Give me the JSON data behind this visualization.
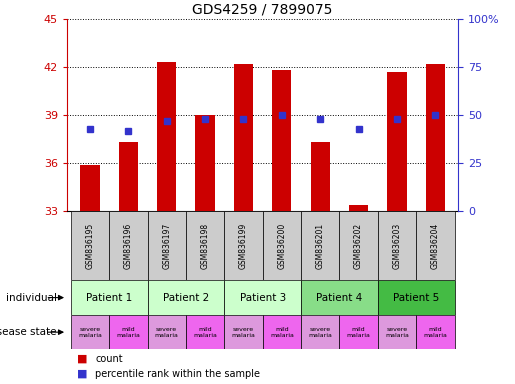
{
  "title": "GDS4259 / 7899075",
  "samples": [
    "GSM836195",
    "GSM836196",
    "GSM836197",
    "GSM836198",
    "GSM836199",
    "GSM836200",
    "GSM836201",
    "GSM836202",
    "GSM836203",
    "GSM836204"
  ],
  "bar_values": [
    35.9,
    37.3,
    42.3,
    39.0,
    42.2,
    41.8,
    37.3,
    33.4,
    41.7,
    42.2
  ],
  "percentile_ranks": [
    43,
    42,
    47,
    48,
    48,
    50,
    48,
    43,
    48,
    50
  ],
  "ylim_left": [
    33,
    45
  ],
  "ylim_right": [
    0,
    100
  ],
  "yticks_left": [
    33,
    36,
    39,
    42,
    45
  ],
  "yticks_right": [
    0,
    25,
    50,
    75,
    100
  ],
  "ytick_labels_right": [
    "0",
    "25",
    "50",
    "75",
    "100%"
  ],
  "bar_color": "#cc0000",
  "percentile_color": "#3333cc",
  "bar_base": 33,
  "patients": [
    {
      "label": "Patient 1",
      "cols": [
        0,
        1
      ],
      "color": "#ccffcc"
    },
    {
      "label": "Patient 2",
      "cols": [
        2,
        3
      ],
      "color": "#ccffcc"
    },
    {
      "label": "Patient 3",
      "cols": [
        4,
        5
      ],
      "color": "#ccffcc"
    },
    {
      "label": "Patient 4",
      "cols": [
        6,
        7
      ],
      "color": "#88dd88"
    },
    {
      "label": "Patient 5",
      "cols": [
        8,
        9
      ],
      "color": "#44bb44"
    }
  ],
  "disease_states": [
    {
      "label": "severe\nmalaria",
      "col": 0,
      "color": "#dd99dd"
    },
    {
      "label": "mild\nmalaria",
      "col": 1,
      "color": "#ee66ee"
    },
    {
      "label": "severe\nmalaria",
      "col": 2,
      "color": "#dd99dd"
    },
    {
      "label": "mild\nmalaria",
      "col": 3,
      "color": "#ee66ee"
    },
    {
      "label": "severe\nmalaria",
      "col": 4,
      "color": "#dd99dd"
    },
    {
      "label": "mild\nmalaria",
      "col": 5,
      "color": "#ee66ee"
    },
    {
      "label": "severe\nmalaria",
      "col": 6,
      "color": "#dd99dd"
    },
    {
      "label": "mild\nmalaria",
      "col": 7,
      "color": "#ee66ee"
    },
    {
      "label": "severe\nmalaria",
      "col": 8,
      "color": "#dd99dd"
    },
    {
      "label": "mild\nmalaria",
      "col": 9,
      "color": "#ee66ee"
    }
  ],
  "left_axis_color": "#cc0000",
  "right_axis_color": "#3333cc",
  "sample_bg_color": "#cccccc",
  "legend_items": [
    {
      "label": "count",
      "color": "#cc0000"
    },
    {
      "label": "percentile rank within the sample",
      "color": "#3333cc"
    }
  ]
}
